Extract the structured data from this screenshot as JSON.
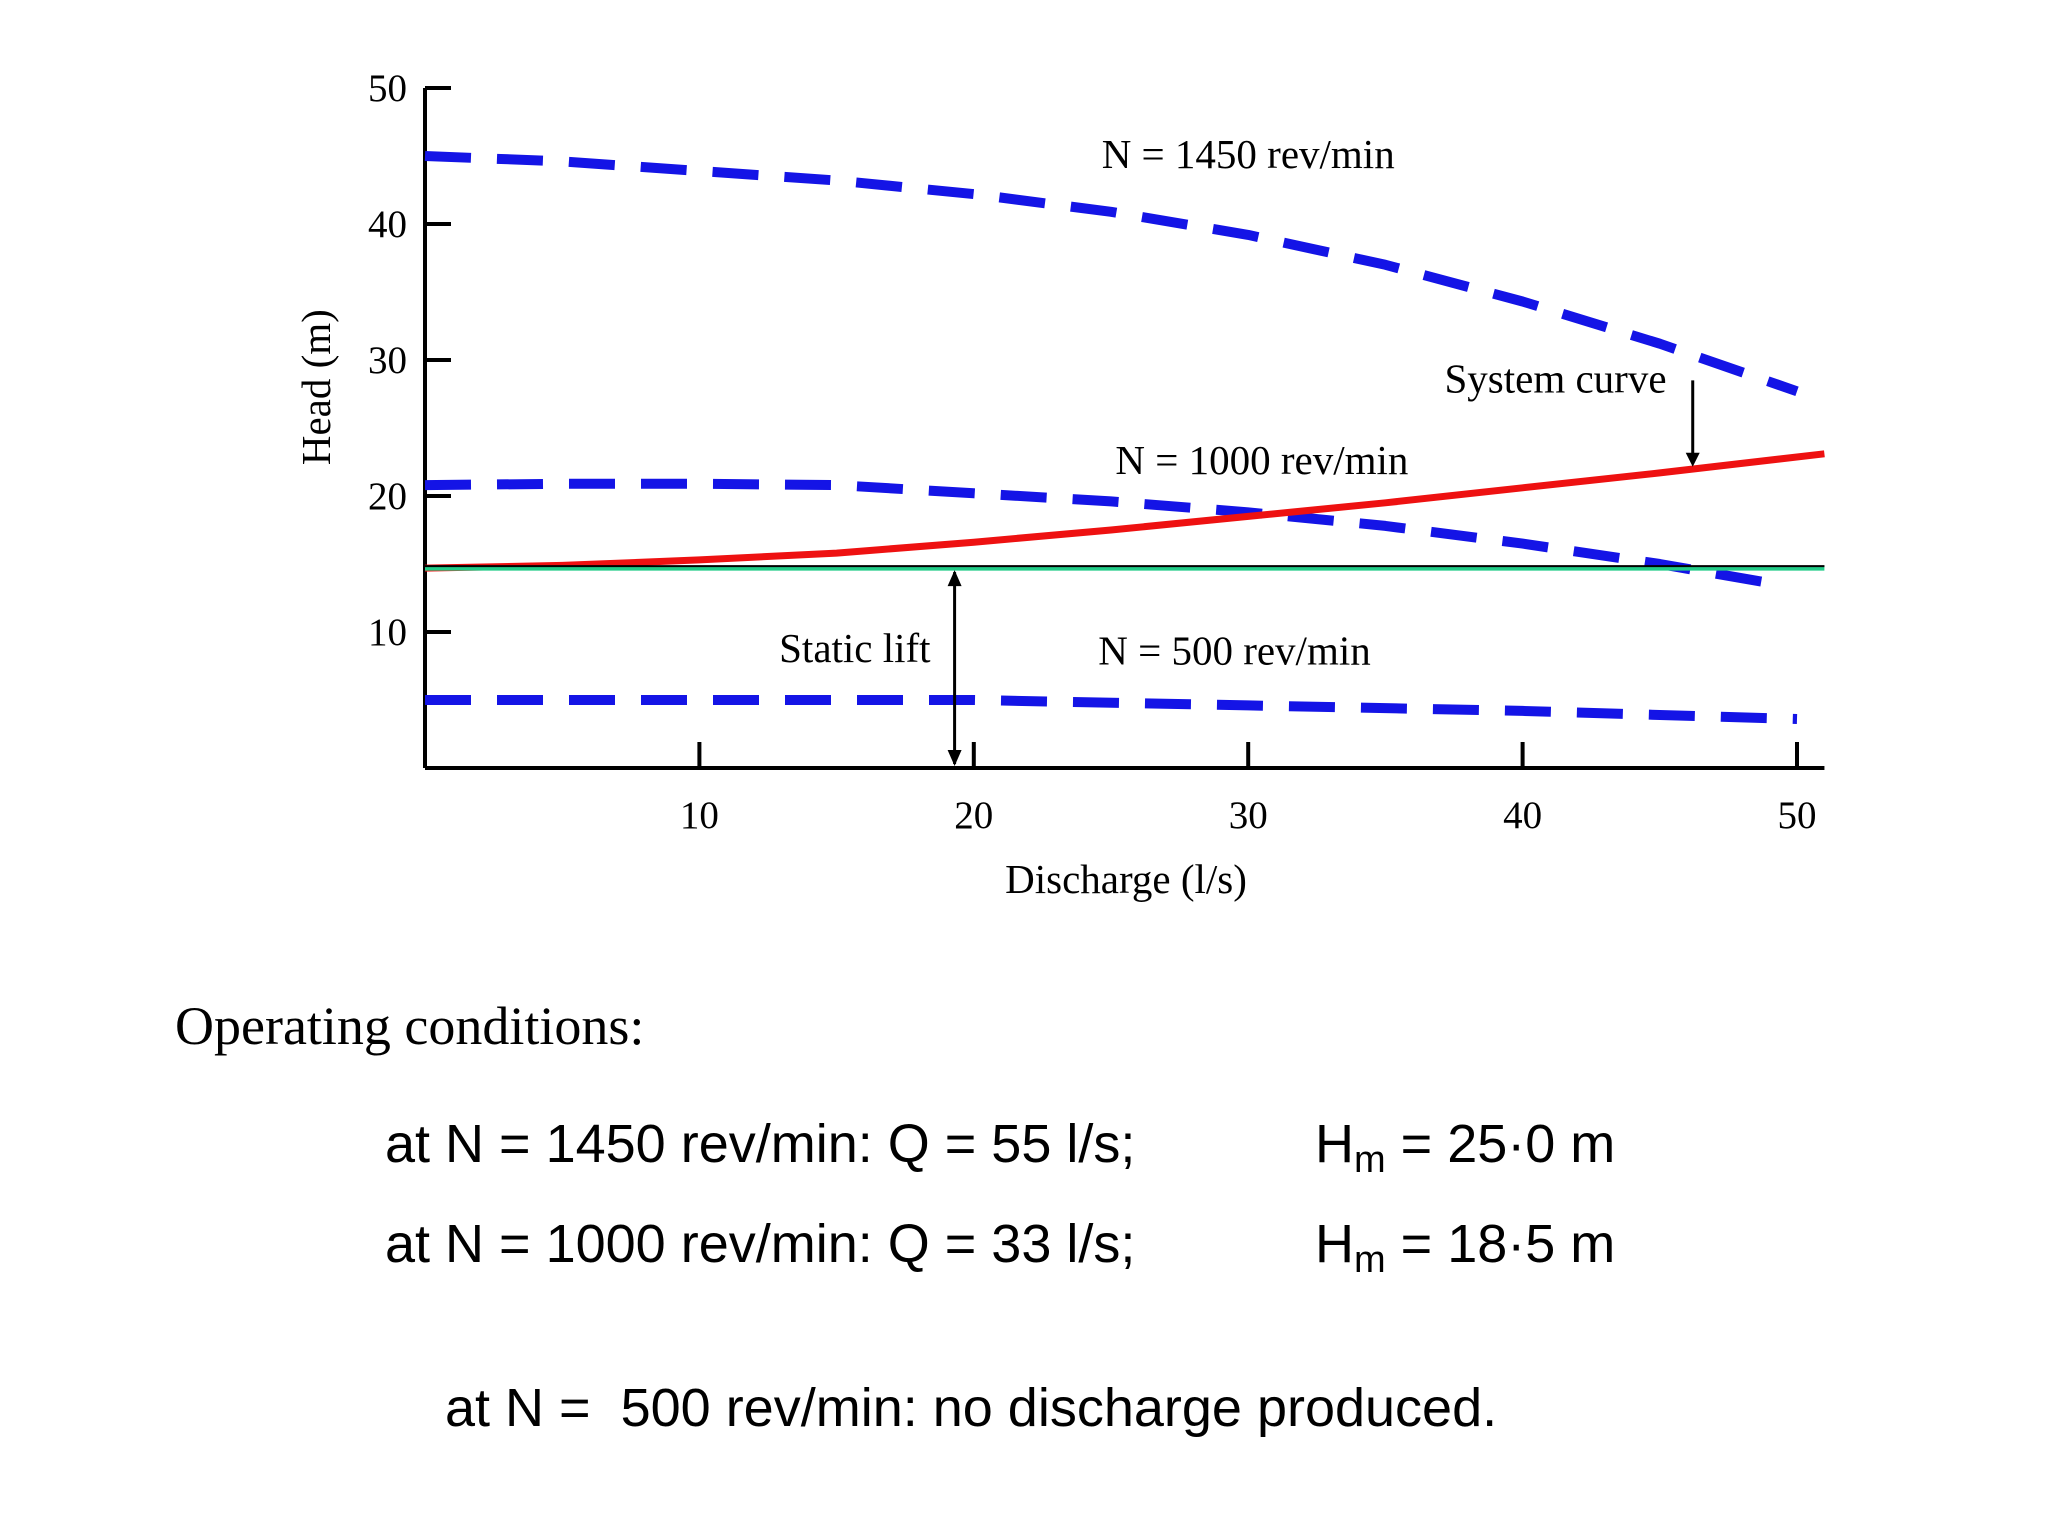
{
  "chart_data": {
    "type": "line",
    "title": "",
    "xlabel": "Discharge (l/s)",
    "ylabel": "Head (m)",
    "xlim": [
      0,
      51
    ],
    "ylim": [
      0,
      50
    ],
    "x_ticks": [
      10,
      20,
      30,
      40,
      50
    ],
    "y_ticks": [
      10,
      20,
      30,
      40,
      50
    ],
    "x_tick_labels": [
      "10",
      "20",
      "30",
      "40",
      "50"
    ],
    "y_tick_labels": [
      "10",
      "20",
      "30",
      "40",
      "50"
    ],
    "grid": false,
    "series": [
      {
        "name": "N = 1450 rev/min",
        "style": "dashed",
        "color": "#1414e6",
        "x": [
          0,
          5,
          10,
          15,
          20,
          25,
          30,
          35,
          40,
          45,
          50
        ],
        "y": [
          45.0,
          44.6,
          43.9,
          43.2,
          42.2,
          40.9,
          39.2,
          37.0,
          34.3,
          31.2,
          27.7
        ]
      },
      {
        "name": "N = 1000 rev/min",
        "style": "dashed",
        "color": "#1414e6",
        "x": [
          0,
          5,
          10,
          15,
          20,
          25,
          30,
          35,
          40,
          45,
          49
        ],
        "y": [
          20.8,
          20.9,
          20.9,
          20.8,
          20.2,
          19.6,
          18.8,
          17.8,
          16.5,
          15.0,
          13.6
        ]
      },
      {
        "name": "N = 500 rev/min",
        "style": "dashed",
        "color": "#1414e6",
        "x": [
          0,
          10,
          20,
          30,
          40,
          50
        ],
        "y": [
          5.0,
          5.0,
          5.0,
          4.6,
          4.2,
          3.6
        ]
      },
      {
        "name": "System curve",
        "style": "solid",
        "color": "#ee1111",
        "x": [
          0,
          5,
          10,
          15,
          20,
          25,
          30,
          35,
          40,
          45,
          51
        ],
        "y": [
          14.7,
          14.9,
          15.3,
          15.8,
          16.6,
          17.5,
          18.5,
          19.5,
          20.6,
          21.7,
          23.1
        ]
      },
      {
        "name": "Static lift",
        "style": "solid",
        "color": "#22cc88",
        "x": [
          0,
          51
        ],
        "y": [
          14.7,
          14.7
        ]
      }
    ],
    "curve_labels": [
      {
        "text": "N = 1450 rev/min",
        "x": 30,
        "y": 45
      },
      {
        "text": "N = 1000 rev/min",
        "x": 30.5,
        "y": 22.5
      },
      {
        "text": "N = 500 rev/min",
        "x": 29.5,
        "y": 8.5
      }
    ],
    "annotations": [
      {
        "text": "System curve",
        "arrow_to": [
          46,
          22
        ]
      },
      {
        "text": "Static lift",
        "arrow_from_y": 0,
        "arrow_to_y": 14.7,
        "arrow_x": 19.3
      }
    ]
  },
  "conditions": {
    "heading": "Operating conditions:",
    "lines": [
      {
        "prefix": "at N = 1450 rev/min: Q = 55 l/s;",
        "h": "H",
        "h_sub": "m",
        "h_value": "= 25·0 m"
      },
      {
        "prefix": "at N = 1000 rev/min: Q = 33 l/s;",
        "h": "H",
        "h_sub": "m",
        "h_value": "= 18·5 m"
      },
      {
        "prefix": "at N =  500 rev/min: no discharge produced.",
        "h": "",
        "h_sub": "",
        "h_value": ""
      }
    ]
  }
}
